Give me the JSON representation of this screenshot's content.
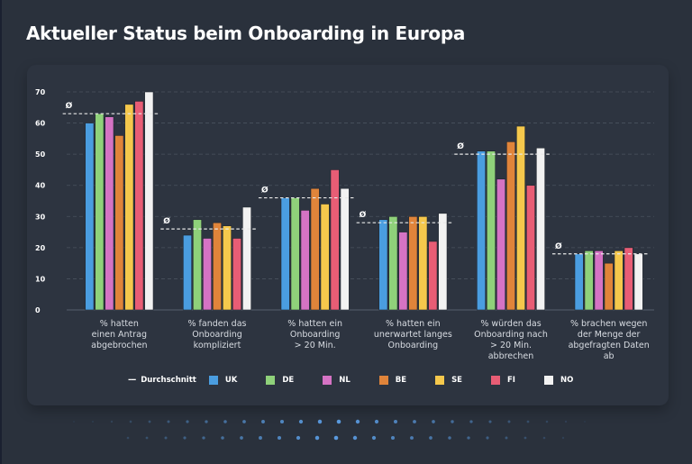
{
  "title": "Aktueller Status beim Onboarding in Europa",
  "chart_data": {
    "type": "bar",
    "title": "Aktueller Status beim Onboarding in Europa",
    "xlabel": "",
    "ylabel": "",
    "ylim": [
      0,
      70
    ],
    "yticks": [
      0,
      10,
      20,
      30,
      40,
      50,
      60,
      70
    ],
    "grid": true,
    "legend_position": "bottom",
    "categories": [
      [
        "% hatten",
        "einen Antrag",
        "abgebrochen"
      ],
      [
        "% fanden das",
        "Onboarding",
        "kompliziert"
      ],
      [
        "% hatten ein",
        "Onboarding",
        "> 20 Min."
      ],
      [
        "% hatten ein",
        "unerwartet langes",
        "Onboarding"
      ],
      [
        "% würden das",
        "Onboarding nach",
        "> 20 Min.",
        "abbrechen"
      ],
      [
        "% brachen wegen",
        "der Menge der",
        "abgefragten Daten",
        "ab"
      ]
    ],
    "series": [
      {
        "name": "UK",
        "color": "#4a9de0",
        "values": [
          60,
          24,
          36,
          29,
          51,
          18
        ]
      },
      {
        "name": "DE",
        "color": "#8fd17a",
        "values": [
          63,
          29,
          36,
          30,
          51,
          19
        ]
      },
      {
        "name": "NL",
        "color": "#d573c4",
        "values": [
          62,
          23,
          32,
          25,
          42,
          19
        ]
      },
      {
        "name": "BE",
        "color": "#e0843a",
        "values": [
          56,
          28,
          39,
          30,
          54,
          15
        ]
      },
      {
        "name": "SE",
        "color": "#f5c84c",
        "values": [
          66,
          27,
          34,
          30,
          59,
          19
        ]
      },
      {
        "name": "FI",
        "color": "#e85d75",
        "values": [
          67,
          23,
          45,
          22,
          40,
          20
        ]
      },
      {
        "name": "NO",
        "color": "#f2f2f2",
        "values": [
          70,
          33,
          39,
          31,
          52,
          18
        ]
      }
    ],
    "average": {
      "name": "Durchschnitt",
      "symbol": "Ø",
      "values": [
        63,
        26,
        36,
        28,
        50,
        18
      ]
    }
  },
  "legend": {
    "average_label": "Durchschnitt",
    "average_marker": "---"
  }
}
